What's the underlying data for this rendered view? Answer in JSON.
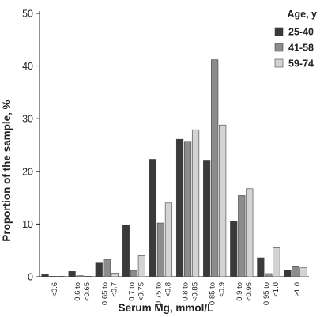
{
  "chart_data": {
    "type": "bar",
    "xlabel": "Serum Mg, mmol/L",
    "ylabel": "Proportion of the sample, %",
    "ylim": [
      0,
      50
    ],
    "yticks": [
      "0",
      "10",
      "20",
      "30",
      "40",
      "50"
    ],
    "categories": [
      [
        "<0.6"
      ],
      [
        "0.6 to",
        "<0.65"
      ],
      [
        "0.65 to",
        "<0.7"
      ],
      [
        "0.7 to",
        "<0.75"
      ],
      [
        "0.75 to",
        "<0.8"
      ],
      [
        "0.8 to",
        "<0.85"
      ],
      [
        "0.85 to",
        "<0.9"
      ],
      [
        "0.9 to",
        "<0.95"
      ],
      [
        "0.95 to",
        "<1.0"
      ],
      [
        "≥1.0"
      ]
    ],
    "legend_title": "Age, y",
    "legend_position": "top-right",
    "grid": false,
    "series": [
      {
        "name": "25-40",
        "color": "#3a3a3a",
        "values": [
          0.4,
          1.0,
          2.6,
          9.8,
          22.3,
          26.1,
          22.0,
          10.6,
          3.6,
          1.3
        ]
      },
      {
        "name": "41-58",
        "color": "#8c8c8c",
        "values": [
          0.1,
          0.2,
          3.3,
          1.2,
          10.2,
          25.7,
          41.2,
          15.4,
          0.6,
          1.9
        ]
      },
      {
        "name": "59-74",
        "color": "#d3d3d3",
        "values": [
          0.1,
          0.1,
          0.7,
          4.0,
          14.0,
          27.9,
          28.8,
          16.7,
          5.5,
          1.7
        ]
      }
    ]
  }
}
